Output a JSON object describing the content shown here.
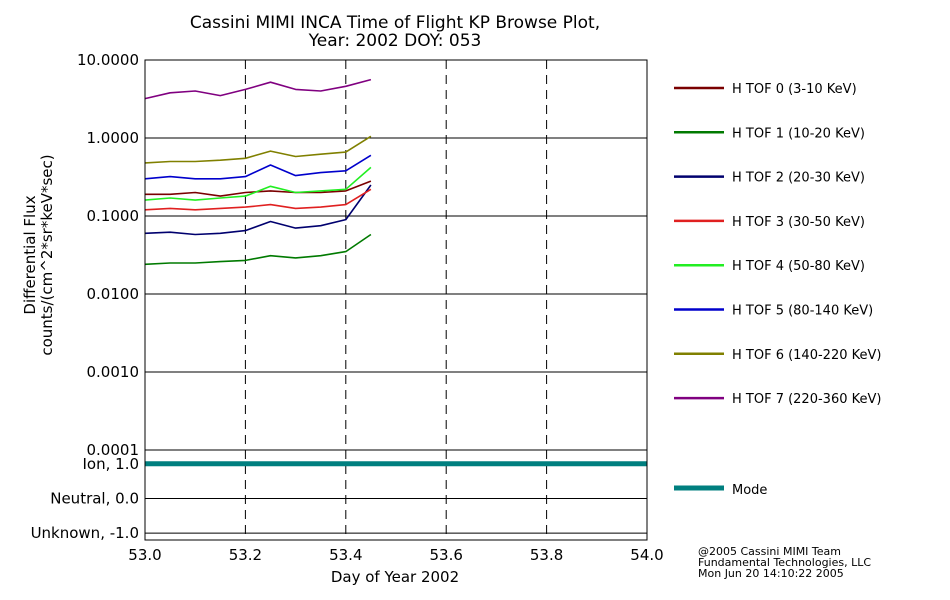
{
  "chart_data": {
    "type": "line",
    "title_line1": "Cassini MIMI INCA Time of Flight KP Browse Plot,",
    "title_line2": "Year: 2002 DOY: 053",
    "xlabel": "Day of Year 2002",
    "ylabel_line1": "Differential Flux",
    "ylabel_line2": "counts/(cm^2*sr*keV*sec)",
    "xlim": [
      53.0,
      54.0
    ],
    "x_ticks": [
      "53.0",
      "53.2",
      "53.4",
      "53.6",
      "53.8",
      "54.0"
    ],
    "x_tick_values": [
      53.0,
      53.2,
      53.4,
      53.6,
      53.8,
      54.0
    ],
    "y_scale": "log",
    "ylim": [
      0.0001,
      10.0
    ],
    "y_ticks": [
      "10.0000",
      "1.0000",
      "0.1000",
      "0.0100",
      "0.0010",
      "0.0001"
    ],
    "y_tick_values": [
      10,
      1,
      0.1,
      0.01,
      0.001,
      0.0001
    ],
    "vertical_dashed_lines_x": [
      53.2,
      53.4,
      53.6,
      53.8
    ],
    "series": [
      {
        "name": "H TOF 0 (3-10 KeV)",
        "color": "#7a0000",
        "x": [
          53.0,
          53.05,
          53.1,
          53.15,
          53.2,
          53.25,
          53.3,
          53.35,
          53.4,
          53.45
        ],
        "values": [
          0.19,
          0.19,
          0.2,
          0.18,
          0.2,
          0.21,
          0.2,
          0.2,
          0.21,
          0.28
        ]
      },
      {
        "name": "H TOF 1 (10-20 KeV)",
        "color": "#007a00",
        "x": [
          53.0,
          53.05,
          53.1,
          53.15,
          53.2,
          53.25,
          53.3,
          53.35,
          53.4,
          53.45
        ],
        "values": [
          0.024,
          0.025,
          0.025,
          0.026,
          0.027,
          0.031,
          0.029,
          0.031,
          0.035,
          0.058
        ]
      },
      {
        "name": "H TOF 2 (20-30 KeV)",
        "color": "#00006e",
        "x": [
          53.0,
          53.05,
          53.1,
          53.15,
          53.2,
          53.25,
          53.3,
          53.35,
          53.4,
          53.45
        ],
        "values": [
          0.06,
          0.062,
          0.058,
          0.06,
          0.065,
          0.085,
          0.07,
          0.075,
          0.09,
          0.25
        ]
      },
      {
        "name": "H TOF 3 (30-50 KeV)",
        "color": "#e02020",
        "x": [
          53.0,
          53.05,
          53.1,
          53.15,
          53.2,
          53.25,
          53.3,
          53.35,
          53.4,
          53.45
        ],
        "values": [
          0.12,
          0.125,
          0.12,
          0.125,
          0.13,
          0.14,
          0.125,
          0.13,
          0.14,
          0.22
        ]
      },
      {
        "name": "H TOF 4 (50-80 KeV)",
        "color": "#22ee22",
        "x": [
          53.0,
          53.05,
          53.1,
          53.15,
          53.2,
          53.25,
          53.3,
          53.35,
          53.4,
          53.45
        ],
        "values": [
          0.16,
          0.17,
          0.16,
          0.17,
          0.18,
          0.24,
          0.2,
          0.21,
          0.22,
          0.42
        ]
      },
      {
        "name": "H TOF 5 (80-140 KeV)",
        "color": "#0000cc",
        "x": [
          53.0,
          53.05,
          53.1,
          53.15,
          53.2,
          53.25,
          53.3,
          53.35,
          53.4,
          53.45
        ],
        "values": [
          0.3,
          0.32,
          0.3,
          0.3,
          0.32,
          0.45,
          0.33,
          0.36,
          0.38,
          0.6
        ]
      },
      {
        "name": "H TOF 6 (140-220 KeV)",
        "color": "#808000",
        "x": [
          53.0,
          53.05,
          53.1,
          53.15,
          53.2,
          53.25,
          53.3,
          53.35,
          53.4,
          53.45
        ],
        "values": [
          0.48,
          0.5,
          0.5,
          0.52,
          0.55,
          0.68,
          0.58,
          0.62,
          0.66,
          1.05
        ]
      },
      {
        "name": "H TOF 7 (220-360 KeV)",
        "color": "#800080",
        "x": [
          53.0,
          53.05,
          53.1,
          53.15,
          53.2,
          53.25,
          53.3,
          53.35,
          53.4,
          53.45
        ],
        "values": [
          3.2,
          3.8,
          4.0,
          3.5,
          4.2,
          5.2,
          4.2,
          4.0,
          4.6,
          5.6
        ]
      }
    ],
    "mode_panel": {
      "y_ticks": [
        "Ion, 1.0",
        "Neutral, 0.0",
        "Unknown, -1.0"
      ],
      "y_tick_values": [
        1.0,
        0.0,
        -1.0
      ],
      "ylim": [
        -1.2,
        1.4
      ],
      "series": {
        "name": "Mode",
        "color": "#007f7f",
        "x": [
          53.0,
          54.0
        ],
        "values": [
          1.0,
          1.0
        ]
      }
    },
    "grid": true,
    "legend_placement": "right"
  },
  "credits": {
    "line1": "@2005 Cassini MIMI Team",
    "line2": "Fundamental Technologies, LLC",
    "line3": "Mon Jun 20 14:10:22 2005"
  }
}
